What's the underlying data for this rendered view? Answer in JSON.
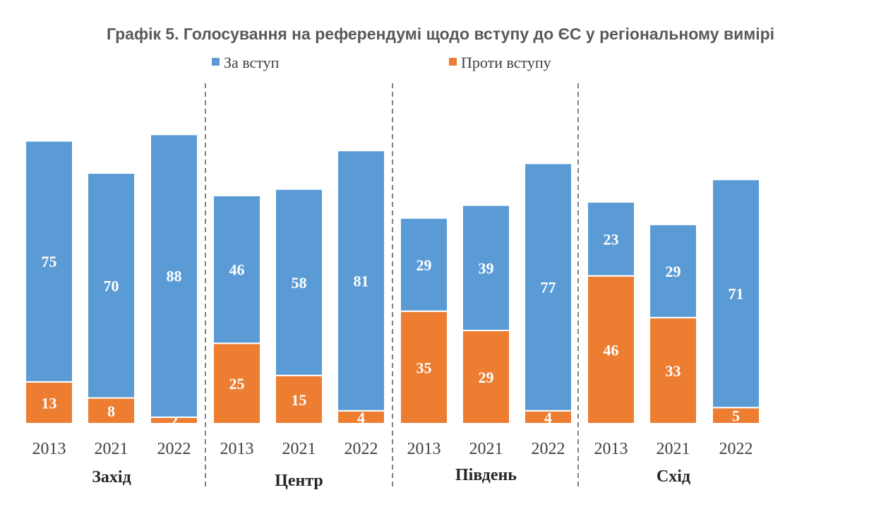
{
  "chart_data": {
    "type": "bar",
    "stacked": true,
    "title": "Графік 5. Голосування на референдумі щодо вступу до ЄС у регіональному вимірі",
    "legend_position": "top",
    "groups": [
      {
        "name": "Захід",
        "categories": [
          "2013",
          "2021",
          "2022"
        ]
      },
      {
        "name": "Центр",
        "categories": [
          "2013",
          "2021",
          "2022"
        ]
      },
      {
        "name": "Південь",
        "categories": [
          "2013",
          "2021",
          "2022"
        ]
      },
      {
        "name": "Схід",
        "categories": [
          "2013",
          "2021",
          "2022"
        ]
      }
    ],
    "series": [
      {
        "name": "Проти вступу",
        "color": "#ed7d31",
        "values": [
          13,
          8,
          2,
          25,
          15,
          4,
          35,
          29,
          4,
          46,
          33,
          5
        ]
      },
      {
        "name": "За вступ",
        "color": "#5b9bd5",
        "values": [
          75,
          70,
          88,
          46,
          58,
          81,
          29,
          39,
          77,
          23,
          29,
          71
        ]
      }
    ],
    "legend_order": [
      1,
      0
    ],
    "grid": false,
    "ylim": [
      0,
      95
    ]
  }
}
